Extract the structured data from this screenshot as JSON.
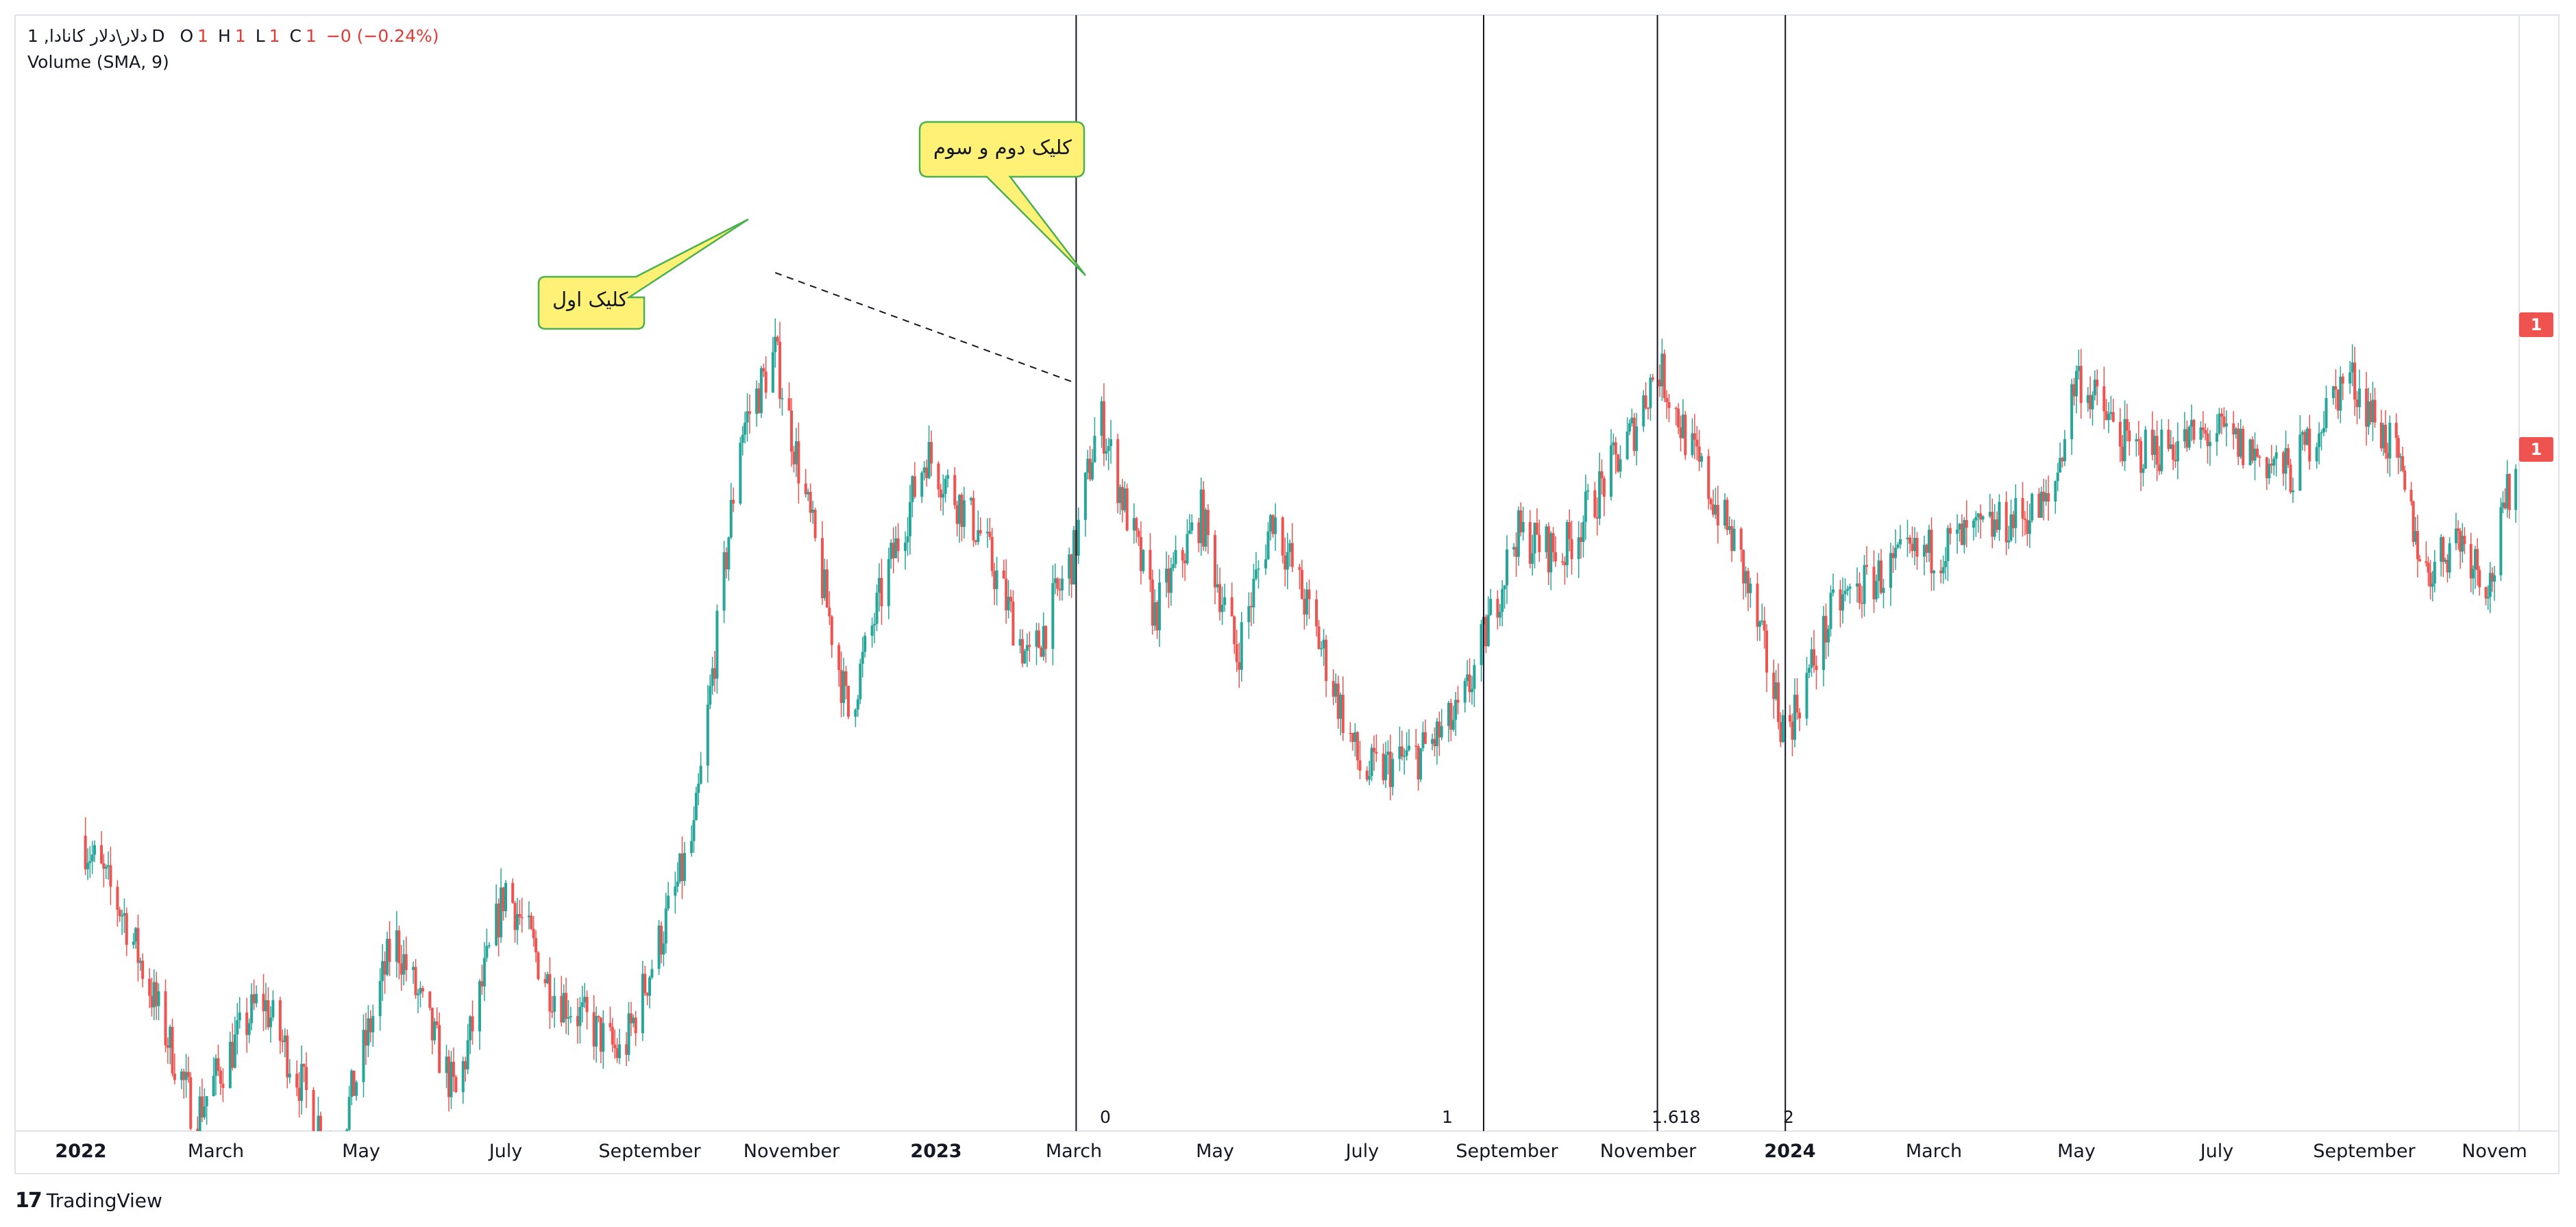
{
  "legend": {
    "symbol": "1 ,دلار\\دلار کانادا",
    "interval": "D",
    "o_label": "O",
    "o_val": "1",
    "h_label": "H",
    "h_val": "1",
    "l_label": "L",
    "l_val": "1",
    "c_label": "C",
    "c_val": "1",
    "change": "−0 (−0.24%)",
    "indicator": "Volume (SMA, 9)"
  },
  "annotations": {
    "callout_first": "کلیک اول",
    "callout_second": "کلیک دوم و سوم"
  },
  "fib_time_zones": [
    "0",
    "1",
    "1.618",
    "2"
  ],
  "price_tags": [
    "1",
    "1"
  ],
  "brand": {
    "name": "TradingView",
    "logo": "17"
  },
  "colors": {
    "up": "#26a69a",
    "down": "#ef5350",
    "text": "#131722",
    "callout_fill": "#fff176",
    "callout_border": "#4caf50"
  },
  "chart_data": {
    "type": "candlestick",
    "x_axis_labels": [
      "2022",
      "March",
      "May",
      "July",
      "September",
      "November",
      "2023",
      "March",
      "May",
      "July",
      "September",
      "November",
      "2024",
      "March",
      "May",
      "July",
      "September",
      "Novem"
    ],
    "x_axis_bold": [
      "2022",
      "2023",
      "2024"
    ],
    "price_path": [
      [
        "2022-01-01",
        0.3
      ],
      [
        "2022-01-20",
        0.22
      ],
      [
        "2022-02-20",
        0.02
      ],
      [
        "2022-03-20",
        0.14
      ],
      [
        "2022-04-20",
        -0.02
      ],
      [
        "2022-05-15",
        0.2
      ],
      [
        "2022-06-10",
        0.04
      ],
      [
        "2022-07-01",
        0.25
      ],
      [
        "2022-07-20",
        0.15
      ],
      [
        "2022-08-20",
        0.08
      ],
      [
        "2022-09-20",
        0.3
      ],
      [
        "2022-10-10",
        0.7
      ],
      [
        "2022-10-25",
        0.78
      ],
      [
        "2022-11-10",
        0.6
      ],
      [
        "2022-11-25",
        0.42
      ],
      [
        "2022-12-10",
        0.55
      ],
      [
        "2022-12-28",
        0.68
      ],
      [
        "2023-01-20",
        0.6
      ],
      [
        "2023-02-10",
        0.47
      ],
      [
        "2023-03-01",
        0.58
      ],
      [
        "2023-03-12",
        0.72
      ],
      [
        "2023-04-05",
        0.52
      ],
      [
        "2023-04-25",
        0.62
      ],
      [
        "2023-05-10",
        0.48
      ],
      [
        "2023-05-25",
        0.62
      ],
      [
        "2023-06-15",
        0.48
      ],
      [
        "2023-07-01",
        0.36
      ],
      [
        "2023-07-25",
        0.38
      ],
      [
        "2023-08-12",
        0.42
      ],
      [
        "2023-09-05",
        0.6
      ],
      [
        "2023-09-25",
        0.58
      ],
      [
        "2023-10-25",
        0.7
      ],
      [
        "2023-11-05",
        0.77
      ],
      [
        "2023-11-20",
        0.68
      ],
      [
        "2023-12-10",
        0.58
      ],
      [
        "2023-12-30",
        0.4
      ],
      [
        "2024-01-20",
        0.53
      ],
      [
        "2024-02-15",
        0.57
      ],
      [
        "2024-03-20",
        0.6
      ],
      [
        "2024-04-20",
        0.63
      ],
      [
        "2024-05-01",
        0.76
      ],
      [
        "2024-05-25",
        0.68
      ],
      [
        "2024-07-01",
        0.7
      ],
      [
        "2024-08-01",
        0.66
      ],
      [
        "2024-08-25",
        0.76
      ],
      [
        "2024-09-15",
        0.68
      ],
      [
        "2024-09-30",
        0.56
      ],
      [
        "2024-10-15",
        0.6
      ],
      [
        "2024-10-30",
        0.55
      ],
      [
        "2024-11-15",
        0.72
      ],
      [
        "2024-11-28",
        0.8
      ],
      [
        "2024-12-05",
        0.76
      ]
    ],
    "fib_time_zone_dates": [
      "2023-03-02",
      "2023-08-22",
      "2023-11-05",
      "2023-12-30"
    ],
    "trend_line": {
      "from": [
        "2022-10-25",
        0.86
      ],
      "to": [
        "2023-03-02",
        0.75
      ]
    },
    "y_range": [
      0.0,
      0.92
    ],
    "x_range": [
      "2021-12-01",
      "2024-12-10"
    ]
  }
}
